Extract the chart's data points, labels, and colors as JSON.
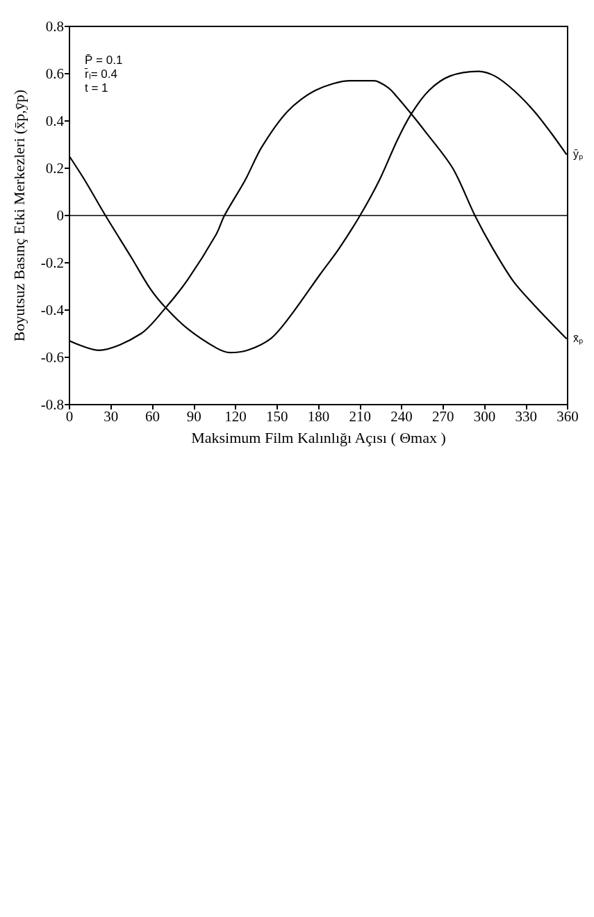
{
  "chart_data": {
    "type": "line",
    "xlabel": "Maksimum Film Kalınlığı Açısı ( Θmax )",
    "ylabel": "Boyutsuz Basınç Etki Merkezleri (x̄p,ȳp)",
    "xlim": [
      0,
      360
    ],
    "xticks": [
      0,
      30,
      60,
      90,
      120,
      150,
      180,
      210,
      240,
      270,
      300,
      330,
      360
    ],
    "ylim": [
      -0.8,
      0.8
    ],
    "yticks": [
      -0.8,
      -0.6,
      -0.4,
      -0.2,
      0,
      0.2,
      0.4,
      0.6,
      0.8
    ],
    "grid": false,
    "legend": false,
    "marker": "none",
    "line_style": "solid",
    "ref_lines": [
      {
        "axis": "y",
        "value": 0,
        "color": "#000000"
      }
    ],
    "annotations": [
      "P̄ = 0.1",
      "r̄ₗ= 0.4",
      "t = 1"
    ],
    "series": [
      {
        "name": "ȳₚ",
        "color": "#000000",
        "x": [
          0,
          11,
          26,
          45,
          58.4,
          69.5,
          85.6,
          106,
          116,
          128.7,
          145.6,
          159,
          181,
          194.8,
          210,
          224,
          237,
          247,
          260,
          275,
          295.5,
          307.4,
          321,
          336,
          348,
          359
        ],
        "values": [
          0.25,
          0.15,
          0,
          -0.18,
          -0.31,
          -0.39,
          -0.48,
          -0.56,
          -0.58,
          -0.57,
          -0.52,
          -0.43,
          -0.25,
          -0.14,
          0,
          0.15,
          0.32,
          0.43,
          0.53,
          0.59,
          0.61,
          0.59,
          0.53,
          0.44,
          0.35,
          0.26
        ]
      },
      {
        "name": "x̄ₚ",
        "color": "#000000",
        "x": [
          0,
          21,
          51.6,
          69.5,
          85.6,
          106,
          112,
          127,
          139,
          157.5,
          178,
          203,
          220,
          230.5,
          237,
          247,
          256.5,
          277,
          293,
          306,
          321,
          336,
          359
        ],
        "values": [
          -0.53,
          -0.57,
          -0.5,
          -0.39,
          -0.27,
          -0.08,
          0,
          0.15,
          0.29,
          0.44,
          0.53,
          0.57,
          0.57,
          0.54,
          0.5,
          0.43,
          0.36,
          0.2,
          0,
          -0.14,
          -0.28,
          -0.38,
          -0.52
        ]
      }
    ]
  }
}
